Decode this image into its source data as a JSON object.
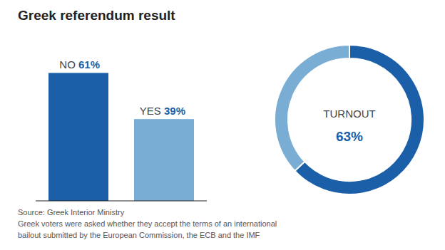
{
  "chart_data": [
    {
      "type": "bar",
      "title": "Greek referendum result",
      "categories": [
        "NO",
        "YES"
      ],
      "values": [
        61,
        39
      ],
      "value_labels": [
        "61%",
        "39%"
      ],
      "data_labels": true,
      "colors": [
        "#1a5fa8",
        "#7aadd4"
      ],
      "ylim": [
        0,
        72
      ],
      "tick_labels": false,
      "grid": false,
      "annotations": [
        "Source: Greek Interior Ministry",
        "Greek voters were asked whether they accept the terms of an international",
        "bailout submitted by the European Commission, the ECB and the IMF"
      ]
    },
    {
      "type": "pie",
      "values": [
        63,
        37
      ],
      "colors": [
        "#1a5fa8",
        "#7aadd4"
      ],
      "annotations": [
        "TURNOUT",
        "63%"
      ]
    }
  ]
}
